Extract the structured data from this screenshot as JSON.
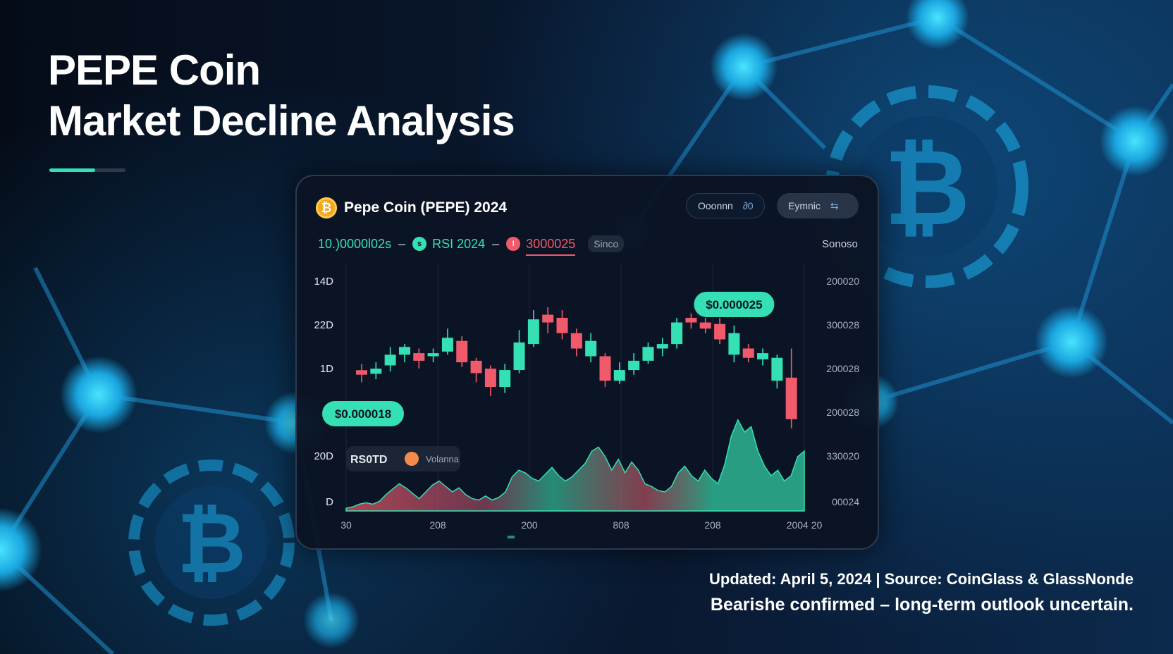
{
  "title": {
    "line1": "PEPE Coin",
    "line2": "Market Decline Analysis"
  },
  "underline_progress": 0.6,
  "card": {
    "coin_icon": "bitcoin-icon",
    "coin_symbol": "₿",
    "title": "Pepe Coin (PEPE) 2024",
    "buttons": [
      {
        "label": "Ooonnn",
        "icon": "∂0"
      },
      {
        "label": "Eymnic",
        "icon": "⇆"
      }
    ],
    "legend": {
      "item1": "10.)0000l02s",
      "dash": "–",
      "item2": "RSI 2024",
      "item3": "3000025",
      "since": "Sinco",
      "right": "Sonoso"
    }
  },
  "colors": {
    "up": "#34e0b4",
    "down": "#f05a6a",
    "accent": "#34e0b4"
  },
  "chart_data": {
    "type": "candlestick",
    "y_left_labels": [
      "14D",
      "22D",
      "1D",
      "",
      "20D",
      "D"
    ],
    "y_right_labels": [
      "200020",
      "300028",
      "200028",
      "200028",
      "330020",
      "00024"
    ],
    "x_labels": [
      "30",
      "208",
      "200",
      "808",
      "208",
      "2004 20"
    ],
    "annotations": [
      {
        "text": "$0.000025",
        "candle": 26
      },
      {
        "text": "$0.000018",
        "candle": 0
      }
    ],
    "volume_legend": {
      "label1": "RS0TD",
      "label2": "Volanna"
    },
    "ylim": [
      0,
      100
    ],
    "candles": [
      {
        "o": 38.5,
        "c": 35.6,
        "h": 42.6,
        "l": 30.7
      },
      {
        "o": 36.2,
        "c": 39.5,
        "h": 43.6,
        "l": 32.7
      },
      {
        "o": 41.6,
        "c": 48.5,
        "h": 53.5,
        "l": 37.6
      },
      {
        "o": 48.5,
        "c": 53.5,
        "h": 55.4,
        "l": 43.6
      },
      {
        "o": 49.5,
        "c": 44.6,
        "h": 52.5,
        "l": 39.6
      },
      {
        "o": 47.5,
        "c": 49.5,
        "h": 52.5,
        "l": 43.6
      },
      {
        "o": 50.5,
        "c": 59.4,
        "h": 65.3,
        "l": 48.5
      },
      {
        "o": 57.4,
        "c": 43.6,
        "h": 60.4,
        "l": 40.6
      },
      {
        "o": 44.6,
        "c": 36.6,
        "h": 46.5,
        "l": 30.7
      },
      {
        "o": 39.5,
        "c": 27.7,
        "h": 41.6,
        "l": 21.8
      },
      {
        "o": 27.7,
        "c": 38.6,
        "h": 42.6,
        "l": 23.8
      },
      {
        "o": 38.6,
        "c": 56.4,
        "h": 64.4,
        "l": 36.6
      },
      {
        "o": 55.4,
        "c": 71.3,
        "h": 77.2,
        "l": 53.5
      },
      {
        "o": 74.3,
        "c": 69.3,
        "h": 79.2,
        "l": 62.4
      },
      {
        "o": 72.3,
        "c": 62.4,
        "h": 77.2,
        "l": 58.4
      },
      {
        "o": 62.4,
        "c": 52.5,
        "h": 65.3,
        "l": 47.5
      },
      {
        "o": 47.5,
        "c": 57.4,
        "h": 62.4,
        "l": 43.6
      },
      {
        "o": 47.5,
        "c": 31.7,
        "h": 49.5,
        "l": 27.7
      },
      {
        "o": 31.7,
        "c": 38.6,
        "h": 43.6,
        "l": 29.7
      },
      {
        "o": 38.6,
        "c": 44.6,
        "h": 49.5,
        "l": 35.6
      },
      {
        "o": 44.6,
        "c": 53.5,
        "h": 56.4,
        "l": 42.6
      },
      {
        "o": 52.5,
        "c": 55.4,
        "h": 59.4,
        "l": 47.5
      },
      {
        "o": 55.4,
        "c": 69.3,
        "h": 72.3,
        "l": 52.5
      },
      {
        "o": 72.3,
        "c": 69.3,
        "h": 75.2,
        "l": 65.3
      },
      {
        "o": 69.3,
        "c": 65.3,
        "h": 72.3,
        "l": 62.4
      },
      {
        "o": 68.3,
        "c": 58.4,
        "h": 72.3,
        "l": 55.4
      },
      {
        "o": 48.5,
        "c": 62.4,
        "h": 67.3,
        "l": 43.6
      },
      {
        "o": 52.5,
        "c": 46.5,
        "h": 55.4,
        "l": 43.6
      },
      {
        "o": 45.5,
        "c": 49.5,
        "h": 52.5,
        "l": 41.6
      },
      {
        "o": 31.7,
        "c": 46.5,
        "h": 48.5,
        "l": 26.7
      },
      {
        "o": 33.7,
        "c": 6.9,
        "h": 52.5,
        "l": 1.0
      }
    ],
    "volume": [
      2,
      3,
      5,
      6,
      5,
      7,
      12,
      16,
      20,
      17,
      13,
      9,
      14,
      19,
      22,
      18,
      14,
      17,
      12,
      9,
      8,
      11,
      8,
      10,
      14,
      25,
      30,
      28,
      24,
      22,
      27,
      32,
      26,
      22,
      25,
      30,
      35,
      44,
      47,
      40,
      30,
      38,
      28,
      36,
      30,
      20,
      18,
      15,
      14,
      18,
      28,
      33,
      26,
      22,
      30,
      24,
      20,
      34,
      55,
      67,
      58,
      62,
      44,
      33,
      26,
      30,
      22,
      26,
      40,
      44
    ],
    "volume_max": 70
  },
  "footer": {
    "line1": "Updated: April 5, 2024 | Source: CoinGlass & GlassNonde",
    "line2": "Bearishe confirmed – long-term outlook uncertain."
  }
}
